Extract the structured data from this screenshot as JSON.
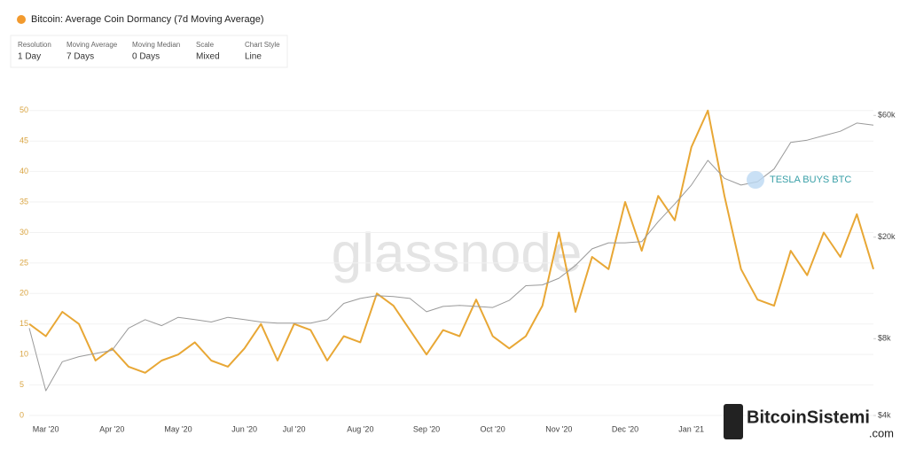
{
  "controls": [
    {
      "label": "Resolution",
      "value": "1 Day"
    },
    {
      "label": "Moving Average",
      "value": "7 Days"
    },
    {
      "label": "Moving Median",
      "value": "0 Days"
    },
    {
      "label": "Scale",
      "value": "Mixed"
    },
    {
      "label": "Chart Style",
      "value": "Line"
    }
  ],
  "watermark": "glassnode",
  "logo": {
    "text": "BitcoinSistemi",
    "suffix": ".com"
  },
  "chart_data": {
    "type": "line",
    "title": "Bitcoin: Average Coin Dormancy (7d Moving Average)",
    "annotation": "TESLA BUYS BTC",
    "categories": [
      null,
      "Mar '20",
      null,
      null,
      null,
      "Apr '20",
      null,
      null,
      null,
      "May '20",
      null,
      null,
      null,
      "Jun '20",
      null,
      null,
      "Jul '20",
      null,
      null,
      null,
      "Aug '20",
      null,
      null,
      null,
      "Sep '20",
      null,
      null,
      null,
      "Oct '20",
      null,
      null,
      null,
      "Nov '20",
      null,
      null,
      null,
      "Dec '20",
      null,
      null,
      null,
      "Jan '21",
      null,
      null,
      null,
      null,
      null,
      null,
      null,
      null,
      null,
      null,
      null
    ],
    "series": [
      {
        "color": "#e8a735",
        "values": [
          15,
          13,
          17,
          15,
          9,
          11,
          8,
          7,
          9,
          10,
          12,
          9,
          8,
          11,
          15,
          9,
          15,
          14,
          9,
          13,
          12,
          20,
          18,
          14,
          10,
          14,
          13,
          19,
          13,
          11,
          13,
          18,
          30,
          17,
          26,
          24,
          35,
          27,
          36,
          32,
          44,
          50,
          36,
          24,
          19,
          18,
          27,
          23,
          30,
          26,
          33,
          24
        ]
      },
      {
        "color": "#9a9a9a",
        "axis": "y2",
        "log": true,
        "values": [
          8800,
          5000,
          6500,
          6800,
          7000,
          7200,
          8800,
          9500,
          9000,
          9700,
          9500,
          9300,
          9700,
          9500,
          9300,
          9200,
          9200,
          9200,
          9500,
          11000,
          11500,
          11800,
          11700,
          11500,
          10200,
          10700,
          10800,
          10700,
          10600,
          11300,
          12900,
          13000,
          13800,
          15500,
          18000,
          19000,
          19000,
          19200,
          23000,
          27000,
          32000,
          40000,
          34000,
          32000,
          33000,
          37000,
          47000,
          48000,
          50000,
          52000,
          56000,
          55000
        ]
      }
    ],
    "ylim": [
      0,
      52
    ],
    "yticks": [
      0,
      5,
      10,
      15,
      20,
      25,
      30,
      35,
      40,
      45,
      50
    ],
    "y2lim": [
      4000,
      70000
    ],
    "y2log": true,
    "y2ticks": [
      {
        "value": 4000,
        "label": "$4k"
      },
      {
        "value": 8000,
        "label": "$8k"
      },
      {
        "value": 20000,
        "label": "$20k"
      },
      {
        "value": 60000,
        "label": "$60k"
      }
    ],
    "grid": true
  }
}
